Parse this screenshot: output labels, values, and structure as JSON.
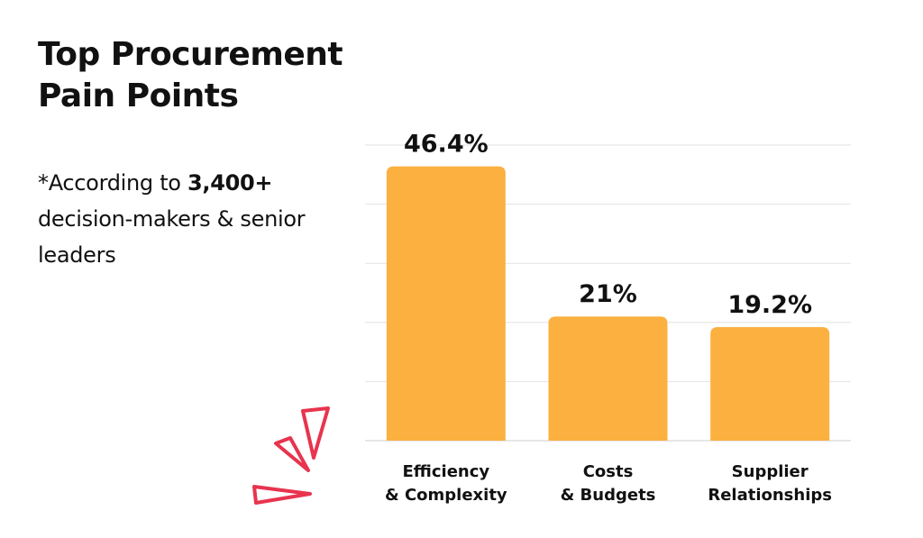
{
  "header": {
    "title_line1": "Top Procurement",
    "title_line2": "Pain Points"
  },
  "note": {
    "prefix": "*According to ",
    "highlight": "3,400+",
    "suffix": " decision-makers & senior leaders"
  },
  "colors": {
    "bar": "#FBB040",
    "accent": "#E8344E",
    "grid": "#E2E2E2",
    "text": "#111111"
  },
  "decoration": {
    "icon": "burst-lines-icon"
  },
  "chart_data": {
    "type": "bar",
    "categories": [
      [
        "Efficiency",
        "& Complexity"
      ],
      [
        "Costs",
        "& Budgets"
      ],
      [
        "Supplier",
        "Relationships"
      ]
    ],
    "values": [
      46.4,
      21,
      19.2
    ],
    "value_labels": [
      "46.4%",
      "21%",
      "19.2%"
    ],
    "ylim": [
      0,
      50
    ],
    "grid": true,
    "legend": "none"
  }
}
